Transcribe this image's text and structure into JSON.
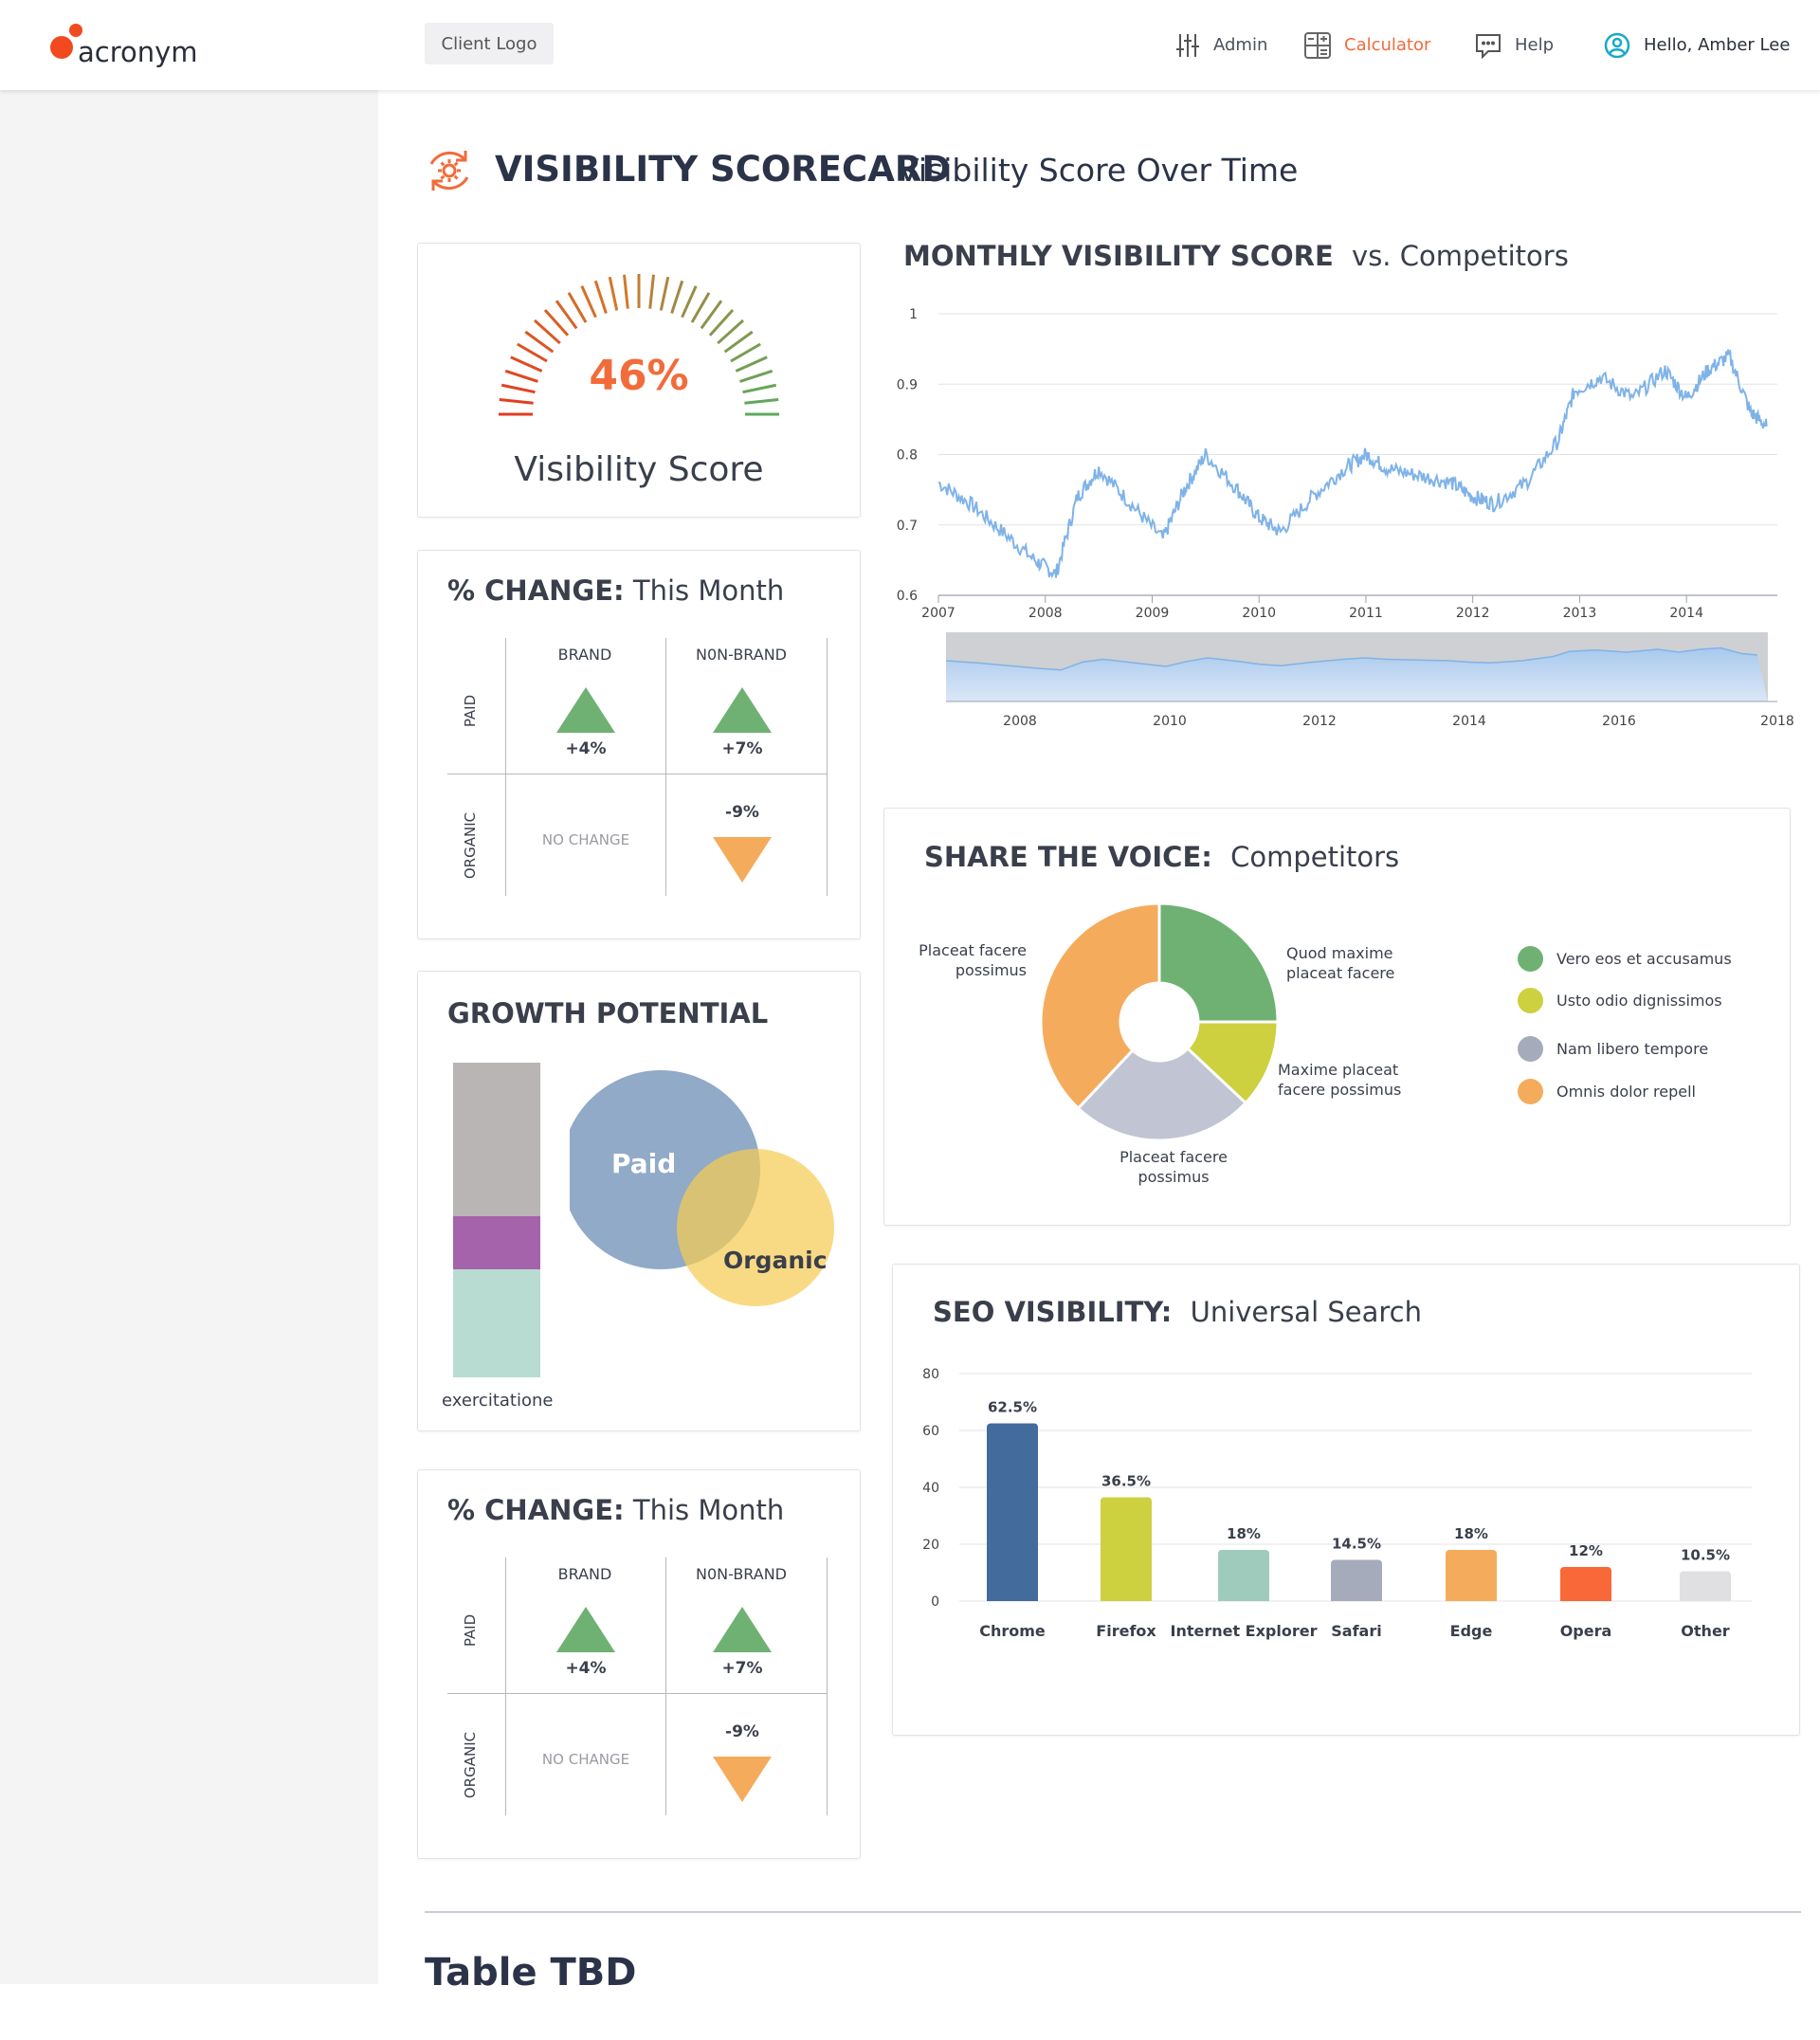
{
  "header": {
    "logo_text": "acronym",
    "client_logo": "Client Logo",
    "nav": [
      {
        "label": "Admin",
        "icon": "sliders-icon",
        "active": false
      },
      {
        "label": "Calculator",
        "icon": "calculator-icon",
        "active": true
      },
      {
        "label": "Help",
        "icon": "chat-help-icon",
        "active": false
      }
    ],
    "user_greeting": "Hello, Amber Lee"
  },
  "colors": {
    "accent": "#f26b3a",
    "green": "#6fb173",
    "orange": "#f4a75a",
    "chart_line": "#7fb3e8"
  },
  "page": {
    "title": "VISIBILITY SCORECARD",
    "subtitle": "Visibility Score Over Time"
  },
  "gauge": {
    "value_text": "46%",
    "value": 0.46,
    "label": "Visibility Score"
  },
  "change_cards": [
    {
      "title": "% CHANGE:",
      "subtitle": "This Month",
      "col_headers": [
        "BRAND",
        "N0N-BRAND"
      ],
      "row_headers": [
        "PAID",
        "ORGANIC"
      ],
      "paid_brand": "+4%",
      "paid_nonbrand": "+7%",
      "organic_brand": "NO CHANGE",
      "organic_nonbrand": "-9%"
    },
    {
      "title": "% CHANGE:",
      "subtitle": "This Month",
      "col_headers": [
        "BRAND",
        "N0N-BRAND"
      ],
      "row_headers": [
        "PAID",
        "ORGANIC"
      ],
      "paid_brand": "+4%",
      "paid_nonbrand": "+7%",
      "organic_brand": "NO CHANGE",
      "organic_nonbrand": "-9%"
    }
  ],
  "growth": {
    "title": "GROWTH POTENTIAL",
    "bar_label": "exercitatione",
    "venn": [
      "Paid",
      "Organic"
    ]
  },
  "monthly": {
    "title": "MONTHLY VISIBILITY SCORE",
    "subtitle": "vs. Competitors"
  },
  "share": {
    "title": "SHARE THE VOICE:",
    "subtitle": "Competitors",
    "legend": [
      {
        "label": "Vero eos et accusamus",
        "color": "#6fb173"
      },
      {
        "label": "Usto odio dignissimos",
        "color": "#cdd03f"
      },
      {
        "label": "Nam libero tempore",
        "color": "#a5abbb"
      },
      {
        "label": "Omnis dolor repell",
        "color": "#f4ac5c"
      }
    ],
    "slice_labels": {
      "green": "Quod maxime placeat facere",
      "yellow": "Maxime placeat facere possimus",
      "gray": "Placeat facere possimus",
      "orange": "Placeat facere possimus"
    }
  },
  "seo": {
    "title": "SEO VISIBILITY:",
    "subtitle": "Universal Search"
  },
  "table_title": "Table TBD",
  "chart_data": [
    {
      "type": "line",
      "title": "MONTHLY VISIBILITY SCORE vs. Competitors",
      "x_ticks": [
        "2007",
        "2008",
        "2009",
        "2010",
        "2011",
        "2012",
        "2013",
        "2014"
      ],
      "y_ticks": [
        "0.6",
        "0.7",
        "0.8",
        "0.9",
        "1"
      ],
      "ylim": [
        0.6,
        1.0
      ],
      "x": [
        2007.0,
        2007.3,
        2007.6,
        2007.9,
        2008.1,
        2008.3,
        2008.5,
        2008.8,
        2009.1,
        2009.3,
        2009.5,
        2009.8,
        2010.0,
        2010.2,
        2010.5,
        2010.8,
        2011.0,
        2011.2,
        2011.5,
        2011.8,
        2012.0,
        2012.2,
        2012.5,
        2012.8,
        2012.95,
        2013.2,
        2013.5,
        2013.8,
        2014.0,
        2014.2,
        2014.4,
        2014.6,
        2014.75
      ],
      "y": [
        0.76,
        0.73,
        0.69,
        0.65,
        0.63,
        0.74,
        0.78,
        0.73,
        0.68,
        0.75,
        0.8,
        0.75,
        0.71,
        0.69,
        0.74,
        0.78,
        0.8,
        0.78,
        0.77,
        0.76,
        0.74,
        0.73,
        0.76,
        0.82,
        0.89,
        0.91,
        0.88,
        0.92,
        0.88,
        0.92,
        0.94,
        0.86,
        0.84
      ],
      "navigator_x_ticks": [
        "2008",
        "2010",
        "2012",
        "2014",
        "2016",
        "2018"
      ]
    },
    {
      "type": "pie",
      "title": "SHARE THE VOICE: Competitors",
      "slices": [
        {
          "name": "Vero eos et accusamus",
          "value": 25,
          "color": "#6fb173"
        },
        {
          "name": "Usto odio dignissimos",
          "value": 12,
          "color": "#cdd03f"
        },
        {
          "name": "Nam libero tempore",
          "value": 25,
          "color": "#c1c4d2"
        },
        {
          "name": "Omnis dolor repell",
          "value": 38,
          "color": "#f4ac5c"
        }
      ]
    },
    {
      "type": "bar",
      "title": "SEO VISIBILITY: Universal Search",
      "categories": [
        "Chrome",
        "Firefox",
        "Internet Explorer",
        "Safari",
        "Edge",
        "Opera",
        "Other"
      ],
      "values": [
        62.5,
        36.5,
        18,
        14.5,
        18,
        12,
        10.5
      ],
      "labels": [
        "62.5%",
        "36.5%",
        "18%",
        "14.5%",
        "18%",
        "12%",
        "10.5%"
      ],
      "colors": [
        "#436b9c",
        "#cdd03f",
        "#9ecbbb",
        "#a5abbb",
        "#f4ac5c",
        "#f96839",
        "#e0e0e2"
      ],
      "y_ticks": [
        "0",
        "20",
        "40",
        "60",
        "80"
      ],
      "ylim": [
        0,
        80
      ]
    }
  ]
}
